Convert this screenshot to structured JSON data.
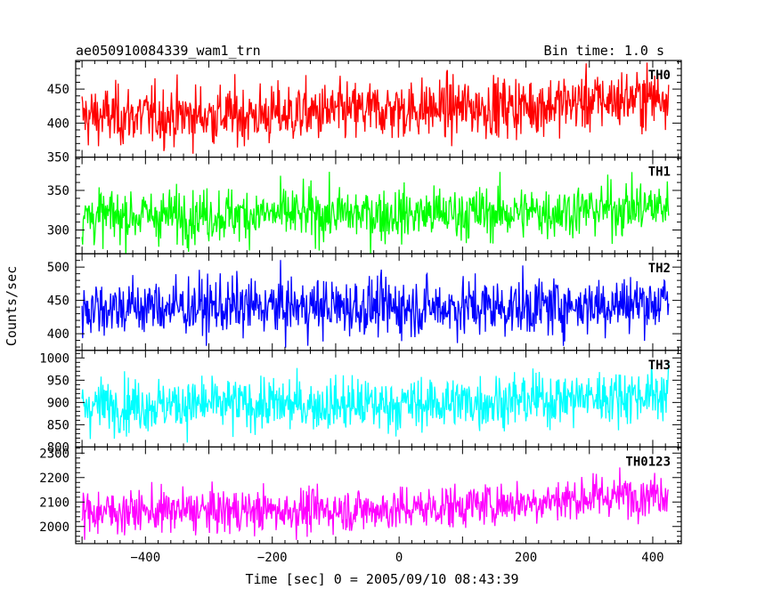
{
  "header": {
    "source": "ae050910084339_wam1_trn",
    "bin_time": "Bin time: 1.0 s"
  },
  "axes": {
    "ylabel": "Counts/sec",
    "xlabel": "Time [sec] 0 = 2005/09/10 08:43:39"
  },
  "chart_data": {
    "type": "line",
    "layout": "stacked-panels",
    "shared_x": {
      "label": "Time [sec] 0 = 2005/09/10 08:43:39",
      "range": [
        -510,
        445
      ],
      "ticks": [
        -400,
        -200,
        0,
        200,
        400
      ],
      "tick_labels": [
        "−400",
        "−200",
        "0",
        "200",
        "400"
      ],
      "data_range": [
        -500,
        425
      ],
      "bin_time_s": 1.0
    },
    "series": [
      {
        "name": "TH0",
        "color": "#ff0000",
        "ylim": [
          350,
          492
        ],
        "yticks": [
          350,
          400,
          450
        ],
        "trend": [
          [
            -500,
            410
          ],
          [
            -200,
            412
          ],
          [
            0,
            420
          ],
          [
            200,
            425
          ],
          [
            425,
            440
          ]
        ],
        "noise_sd": 22
      },
      {
        "name": "TH1",
        "color": "#00ff00",
        "ylim": [
          270,
          392
        ],
        "yticks": [
          300,
          350
        ],
        "trend": [
          [
            -500,
            317
          ],
          [
            -200,
            320
          ],
          [
            0,
            320
          ],
          [
            200,
            322
          ],
          [
            425,
            330
          ]
        ],
        "noise_sd": 17
      },
      {
        "name": "TH2",
        "color": "#0000ff",
        "ylim": [
          375,
          520
        ],
        "yticks": [
          400,
          450,
          500
        ],
        "trend": [
          [
            -500,
            440
          ],
          [
            -200,
            440
          ],
          [
            0,
            440
          ],
          [
            200,
            440
          ],
          [
            425,
            448
          ]
        ],
        "noise_sd": 22
      },
      {
        "name": "TH3",
        "color": "#00ffff",
        "ylim": [
          800,
          1017
        ],
        "yticks": [
          800,
          850,
          900,
          950,
          1000
        ],
        "trend": [
          [
            -500,
            895
          ],
          [
            -200,
            895
          ],
          [
            0,
            895
          ],
          [
            200,
            905
          ],
          [
            425,
            920
          ]
        ],
        "noise_sd": 30
      },
      {
        "name": "TH0123",
        "color": "#ff00ff",
        "ylim": [
          1930,
          2325
        ],
        "yticks": [
          2000,
          2100,
          2200,
          2300
        ],
        "trend": [
          [
            -500,
            2060
          ],
          [
            -200,
            2065
          ],
          [
            0,
            2070
          ],
          [
            200,
            2100
          ],
          [
            425,
            2140
          ]
        ],
        "noise_sd": 45
      }
    ]
  }
}
